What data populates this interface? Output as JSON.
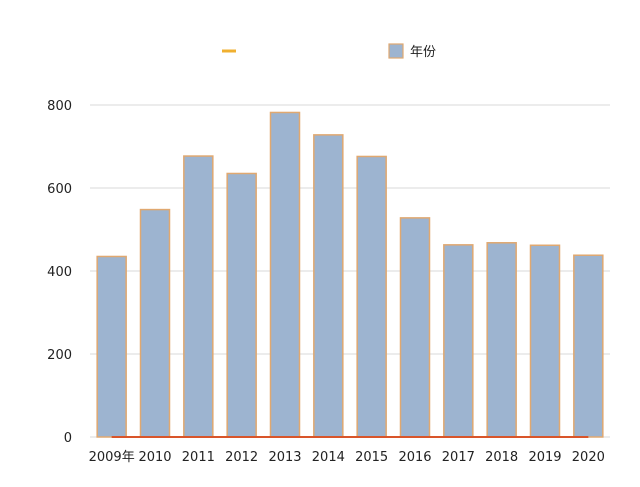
{
  "chart_data": {
    "type": "bar",
    "categories": [
      "2009年",
      "2010",
      "2011",
      "2012",
      "2013",
      "2014",
      "2015",
      "2016",
      "2017",
      "2018",
      "2019",
      "2020"
    ],
    "series": [
      {
        "name": "年份",
        "values": [
          435,
          548,
          677,
          635,
          782,
          728,
          676,
          528,
          463,
          468,
          462,
          438
        ],
        "color": "#9db4d0",
        "stroke": "#e0a870"
      }
    ],
    "line_series": [
      {
        "name": "",
        "values": [
          0,
          0,
          0,
          0,
          0,
          0,
          0,
          0,
          0,
          0,
          0,
          0
        ],
        "color": "#f0b030"
      }
    ],
    "yticks": [
      "0",
      "200",
      "400",
      "600",
      "800"
    ],
    "ylim": [
      0,
      800
    ],
    "grid": true,
    "legend": "top",
    "title": "",
    "xlabel": "",
    "ylabel": ""
  }
}
